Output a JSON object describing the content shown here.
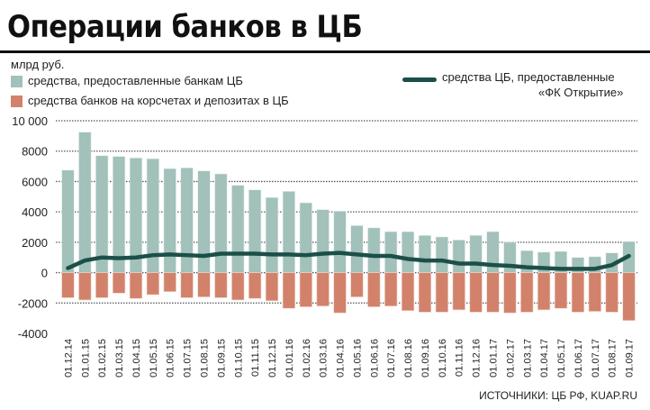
{
  "title": "Операции банков в ЦБ",
  "unit": "млрд руб.",
  "source": "ИСТОЧНИКИ: ЦБ РФ, KUAP.RU",
  "colors": {
    "provided": "#a1c1ba",
    "deposits": "#d2826b",
    "line": "#1c4f48"
  },
  "chart_data": {
    "type": "bar",
    "ylim": [
      -4000,
      10000
    ],
    "yticks": [
      "10 000",
      "8000",
      "6000",
      "4000",
      "2000",
      "0",
      "-2000",
      "-4000"
    ],
    "ytick_values": [
      10000,
      8000,
      6000,
      4000,
      2000,
      0,
      -2000,
      -4000
    ],
    "categories": [
      "01.12.14",
      "01.01.15",
      "01.02.15",
      "01.03.15",
      "01.04.15",
      "01.05.15",
      "01.06.15",
      "01.07.15",
      "01.08.15",
      "01.09.15",
      "01.10.15",
      "01.11.15",
      "01.12.15",
      "01.01.16",
      "01.02.16",
      "01.03.16",
      "01.04.16",
      "01.05.16",
      "01.06.16",
      "01.07.16",
      "01.08.16",
      "01.09.16",
      "01.10.16",
      "01.11.16",
      "01.12.16",
      "01.01.17",
      "01.02.17",
      "01.03.17",
      "01.04.17",
      "01.05.17",
      "01.06.17",
      "01.07.17",
      "01.08.17",
      "01.09.17"
    ],
    "series": [
      {
        "name": "средства, предоставленные банкам ЦБ",
        "type": "bar",
        "values": [
          6750,
          9250,
          7700,
          7650,
          7550,
          7500,
          6850,
          6900,
          6700,
          6500,
          5750,
          5450,
          4950,
          5350,
          4600,
          4150,
          4050,
          3100,
          2950,
          2700,
          2700,
          2450,
          2350,
          2150,
          2450,
          2700,
          2000,
          1450,
          1350,
          1400,
          1000,
          1050,
          1300,
          2050
        ]
      },
      {
        "name": "средства банков на корсчетах и депозитах в ЦБ",
        "type": "bar",
        "values": [
          -1650,
          -1800,
          -1650,
          -1350,
          -1700,
          -1450,
          -1250,
          -1650,
          -1600,
          -1650,
          -1800,
          -1700,
          -1850,
          -2350,
          -2250,
          -2200,
          -2650,
          -1600,
          -2250,
          -2200,
          -2500,
          -2600,
          -2600,
          -2450,
          -2600,
          -2600,
          -2650,
          -2600,
          -2450,
          -2350,
          -2600,
          -2550,
          -2600,
          -3150
        ]
      },
      {
        "name": "средства ЦБ, предоставленные «ФК Открытие»",
        "type": "line",
        "values": [
          300,
          800,
          1000,
          950,
          1000,
          1150,
          1200,
          1150,
          1100,
          1250,
          1250,
          1250,
          1200,
          1200,
          1150,
          1250,
          1300,
          1200,
          1100,
          1100,
          900,
          800,
          800,
          600,
          600,
          500,
          450,
          350,
          300,
          250,
          250,
          250,
          500,
          1100
        ]
      }
    ],
    "legend": [
      "средства, предоставленные банкам ЦБ",
      "средства банков на корсчетах и депозитах в ЦБ",
      "средства ЦБ, предоставленные",
      "«ФК Открытие»"
    ]
  }
}
